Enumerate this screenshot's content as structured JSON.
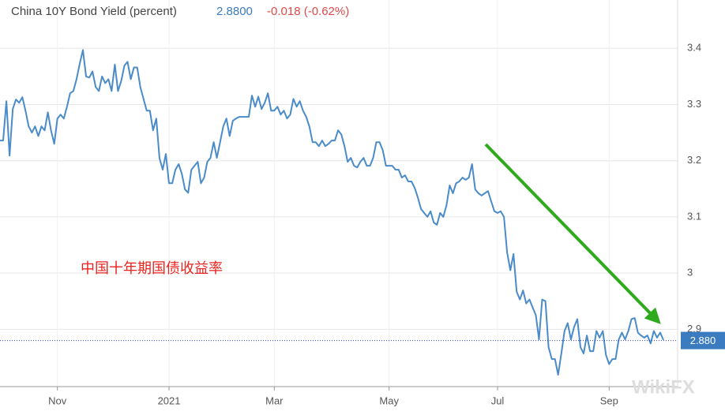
{
  "chart_data": {
    "type": "line",
    "title": "China 10Y Bond Yield (percent)",
    "last_price": "2.8800",
    "change": "-0.018 (-0.62%)",
    "annotation": "中国十年期国债收益率",
    "watermark": "WikiFX",
    "series": [
      {
        "name": "China 10Y Bond Yield",
        "color": "#4a8bc9",
        "values": [
          3.236,
          3.236,
          3.306,
          3.209,
          3.292,
          3.309,
          3.303,
          3.313,
          3.289,
          3.261,
          3.25,
          3.261,
          3.244,
          3.261,
          3.254,
          3.286,
          3.254,
          3.23,
          3.275,
          3.282,
          3.275,
          3.296,
          3.32,
          3.324,
          3.345,
          3.373,
          3.397,
          3.35,
          3.348,
          3.359,
          3.331,
          3.324,
          3.35,
          3.338,
          3.345,
          3.324,
          3.371,
          3.324,
          3.342,
          3.369,
          3.376,
          3.345,
          3.366,
          3.366,
          3.331,
          3.31,
          3.289,
          3.289,
          3.254,
          3.275,
          3.205,
          3.184,
          3.212,
          3.16,
          3.16,
          3.184,
          3.194,
          3.177,
          3.149,
          3.143,
          3.184,
          3.191,
          3.198,
          3.16,
          3.17,
          3.198,
          3.205,
          3.233,
          3.205,
          3.233,
          3.261,
          3.275,
          3.244,
          3.271,
          3.275,
          3.278,
          3.278,
          3.278,
          3.278,
          3.316,
          3.296,
          3.314,
          3.292,
          3.303,
          3.32,
          3.289,
          3.289,
          3.296,
          3.282,
          3.289,
          3.275,
          3.282,
          3.31,
          3.296,
          3.306,
          3.289,
          3.278,
          3.261,
          3.233,
          3.233,
          3.226,
          3.236,
          3.226,
          3.23,
          3.236,
          3.236,
          3.254,
          3.247,
          3.226,
          3.198,
          3.205,
          3.191,
          3.188,
          3.198,
          3.205,
          3.191,
          3.191,
          3.205,
          3.233,
          3.233,
          3.219,
          3.191,
          3.191,
          3.191,
          3.184,
          3.184,
          3.17,
          3.174,
          3.163,
          3.163,
          3.152,
          3.135,
          3.114,
          3.107,
          3.1,
          3.11,
          3.09,
          3.086,
          3.107,
          3.1,
          3.121,
          3.156,
          3.142,
          3.16,
          3.163,
          3.17,
          3.166,
          3.17,
          3.194,
          3.149,
          3.142,
          3.138,
          3.142,
          3.146,
          3.128,
          3.11,
          3.107,
          3.11,
          3.1,
          3.037,
          3.005,
          3.034,
          2.967,
          2.953,
          2.969,
          2.946,
          2.953,
          2.939,
          2.925,
          2.882,
          2.953,
          2.95,
          2.868,
          2.847,
          2.847,
          2.819,
          2.857,
          2.897,
          2.911,
          2.882,
          2.904,
          2.918,
          2.868,
          2.857,
          2.889,
          2.861,
          2.861,
          2.897,
          2.885,
          2.897,
          2.854,
          2.838,
          2.847,
          2.847,
          2.882,
          2.894,
          2.882,
          2.897,
          2.918,
          2.92,
          2.894,
          2.889,
          2.885,
          2.889,
          2.875,
          2.897,
          2.885,
          2.894,
          2.881
        ]
      }
    ],
    "last_value": {
      "value": 2.88,
      "label": "2.880"
    },
    "xlim": [
      0,
      208
    ],
    "xticks": [
      {
        "value": 18,
        "label": "Nov"
      },
      {
        "value": 53,
        "label": "2021"
      },
      {
        "value": 86,
        "label": "Mar"
      },
      {
        "value": 122,
        "label": "May"
      },
      {
        "value": 156,
        "label": "Jul"
      },
      {
        "value": 191,
        "label": "Sep"
      }
    ],
    "ylim": [
      2.798,
      3.486
    ],
    "yticks": [
      2.9,
      3,
      3.1,
      3.2,
      3.3,
      3.4
    ],
    "grid": true
  }
}
